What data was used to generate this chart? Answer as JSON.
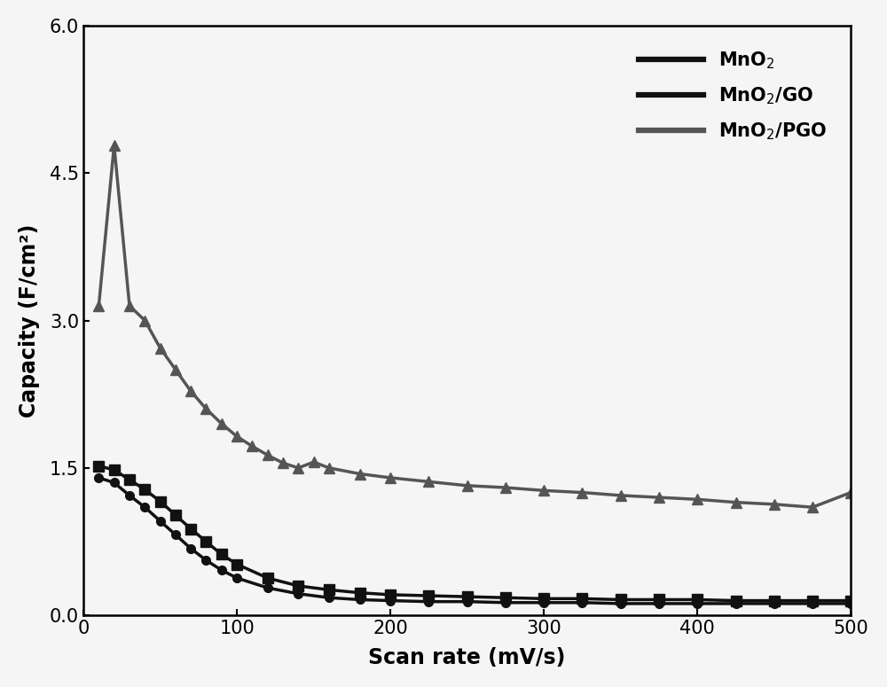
{
  "xlabel": "Scan rate (mV/s)",
  "ylabel": "Capacity (F/cm²)",
  "xlim": [
    0,
    500
  ],
  "ylim": [
    0.0,
    6.0
  ],
  "xticks": [
    0,
    100,
    200,
    300,
    400,
    500
  ],
  "yticks": [
    0.0,
    1.5,
    3.0,
    4.5,
    6.0
  ],
  "background_color": "#f5f5f5",
  "series": [
    {
      "label": "MnO$_2$",
      "color": "#111111",
      "marker": "o",
      "linewidth": 2.5,
      "markersize": 7,
      "x": [
        10,
        20,
        30,
        40,
        50,
        60,
        70,
        80,
        90,
        100,
        120,
        140,
        160,
        180,
        200,
        225,
        250,
        275,
        300,
        325,
        350,
        375,
        400,
        425,
        450,
        475,
        500
      ],
      "y": [
        1.4,
        1.35,
        1.22,
        1.1,
        0.96,
        0.82,
        0.68,
        0.56,
        0.46,
        0.38,
        0.28,
        0.22,
        0.18,
        0.16,
        0.15,
        0.14,
        0.14,
        0.13,
        0.13,
        0.13,
        0.12,
        0.12,
        0.12,
        0.12,
        0.12,
        0.12,
        0.12
      ]
    },
    {
      "label": "MnO$_2$/GO",
      "color": "#111111",
      "marker": "s",
      "linewidth": 2.5,
      "markersize": 8,
      "x": [
        10,
        20,
        30,
        40,
        50,
        60,
        70,
        80,
        90,
        100,
        120,
        140,
        160,
        180,
        200,
        225,
        250,
        275,
        300,
        325,
        350,
        375,
        400,
        425,
        450,
        475,
        500
      ],
      "y": [
        1.52,
        1.48,
        1.38,
        1.28,
        1.16,
        1.02,
        0.88,
        0.75,
        0.62,
        0.52,
        0.38,
        0.3,
        0.26,
        0.23,
        0.21,
        0.2,
        0.19,
        0.18,
        0.17,
        0.17,
        0.16,
        0.16,
        0.16,
        0.15,
        0.15,
        0.15,
        0.15
      ]
    },
    {
      "label": "MnO$_2$/PGO",
      "color": "#555555",
      "marker": "^",
      "linewidth": 2.5,
      "markersize": 9,
      "x": [
        10,
        20,
        30,
        40,
        50,
        60,
        70,
        80,
        90,
        100,
        110,
        120,
        130,
        140,
        150,
        160,
        180,
        200,
        225,
        250,
        275,
        300,
        325,
        350,
        375,
        400,
        425,
        450,
        475,
        500
      ],
      "y": [
        3.15,
        4.78,
        3.15,
        3.0,
        2.72,
        2.5,
        2.28,
        2.1,
        1.95,
        1.82,
        1.72,
        1.63,
        1.55,
        1.5,
        1.56,
        1.5,
        1.44,
        1.4,
        1.36,
        1.32,
        1.3,
        1.27,
        1.25,
        1.22,
        1.2,
        1.18,
        1.15,
        1.13,
        1.1,
        1.25
      ]
    }
  ],
  "legend_fontsize": 15,
  "axis_label_fontsize": 17,
  "tick_fontsize": 15
}
